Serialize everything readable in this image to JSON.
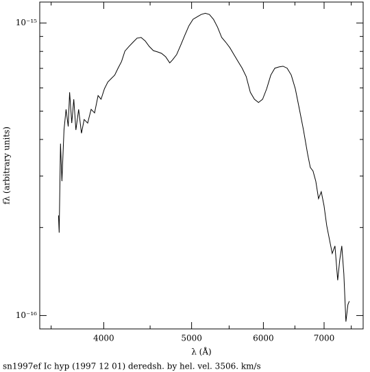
{
  "chart_data": {
    "type": "line",
    "caption": "sn1997ef Ic hyp (1997 12 01) deredsh. by hel. vel.  3506. km/s",
    "xlabel": "λ (Å)",
    "ylabel": "fλ (arbitrary units)",
    "xlog": true,
    "ylog": true,
    "xlim": [
      3400,
      7730
    ],
    "ylim": [
      9e-17,
      1.18e-15
    ],
    "xticks": [
      4000,
      5000,
      6000,
      7000
    ],
    "xminorticks": [
      3500,
      4500,
      5500,
      6500,
      7500
    ],
    "yticks": [
      {
        "value": 1e-16,
        "label": "10⁻¹⁶"
      },
      {
        "value": 1e-15,
        "label": "10⁻¹⁵"
      }
    ],
    "yminorticks": [
      2e-16,
      3e-16,
      4e-16,
      5e-16,
      6e-16,
      7e-16,
      8e-16,
      9e-16
    ],
    "color": "#000000",
    "x": [
      3566,
      3572,
      3584,
      3597,
      3616,
      3635,
      3655,
      3668,
      3688,
      3707,
      3727,
      3753,
      3780,
      3806,
      3840,
      3874,
      3908,
      3943,
      3973,
      4007,
      4042,
      4077,
      4113,
      4148,
      4185,
      4221,
      4265,
      4309,
      4353,
      4398,
      4444,
      4490,
      4537,
      4585,
      4632,
      4681,
      4730,
      4763,
      4813,
      4864,
      4914,
      4966,
      5018,
      5070,
      5123,
      5177,
      5231,
      5286,
      5341,
      5397,
      5453,
      5510,
      5568,
      5626,
      5685,
      5744,
      5804,
      5865,
      5926,
      5988,
      6050,
      6114,
      6177,
      6242,
      6307,
      6373,
      6440,
      6507,
      6575,
      6643,
      6713,
      6759,
      6806,
      6854,
      6902,
      6950,
      6998,
      7047,
      7096,
      7146,
      7196,
      7246,
      7284,
      7322,
      7360,
      7399,
      7437,
      7463
    ],
    "values": [
      2.2e-16,
      1.92e-16,
      3.87e-16,
      2.88e-16,
      4.31e-16,
      5.07e-16,
      4.43e-16,
      5.8e-16,
      4.55e-16,
      5.49e-16,
      4.31e-16,
      5.07e-16,
      4.2e-16,
      4.68e-16,
      4.55e-16,
      5.07e-16,
      4.93e-16,
      5.65e-16,
      5.49e-16,
      5.96e-16,
      6.29e-16,
      6.46e-16,
      6.64e-16,
      7.01e-16,
      7.39e-16,
      8.02e-16,
      8.32e-16,
      8.6e-16,
      8.88e-16,
      8.93e-16,
      8.69e-16,
      8.32e-16,
      8.05e-16,
      7.97e-16,
      7.88e-16,
      7.67e-16,
      7.31e-16,
      7.48e-16,
      7.8e-16,
      8.41e-16,
      9.08e-16,
      9.79e-16,
      1.03e-15,
      1.05e-15,
      1.07e-15,
      1.08e-15,
      1.07e-15,
      1.03e-15,
      9.68e-16,
      8.93e-16,
      8.6e-16,
      8.24e-16,
      7.8e-16,
      7.39e-16,
      7.01e-16,
      6.56e-16,
      5.8e-16,
      5.49e-16,
      5.35e-16,
      5.49e-16,
      5.96e-16,
      6.64e-16,
      7.01e-16,
      7.08e-16,
      7.12e-16,
      7.01e-16,
      6.64e-16,
      5.96e-16,
      5.07e-16,
      4.31e-16,
      3.57e-16,
      3.21e-16,
      3.12e-16,
      2.88e-16,
      2.51e-16,
      2.65e-16,
      2.38e-16,
      2.03e-16,
      1.82e-16,
      1.63e-16,
      1.73e-16,
      1.32e-16,
      1.55e-16,
      1.73e-16,
      1.39e-16,
      9.53e-17,
      1.09e-16,
      1.12e-16
    ]
  }
}
